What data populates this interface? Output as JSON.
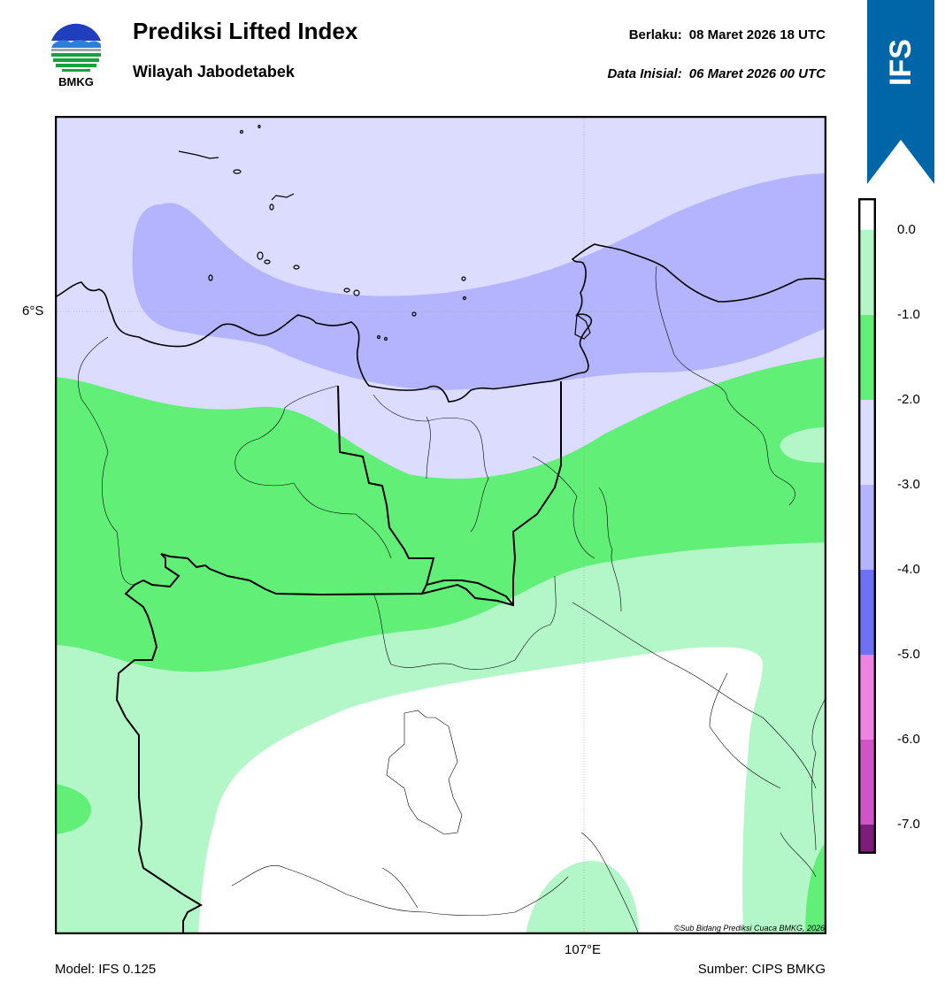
{
  "header": {
    "title": "Prediksi Lifted Index",
    "subtitle": "Wilayah Jabodetabek",
    "valid_label": "Berlaku:",
    "valid_value": "08 Maret 2026 18 UTC",
    "init_label": "Data Inisial:",
    "init_value": "06 Maret 2026 00 UTC"
  },
  "logo": {
    "text": "BMKG",
    "icon": "bmkg-logo"
  },
  "banner": {
    "text": "IFS",
    "color": "#0066a8"
  },
  "map": {
    "lat_label": "6°S",
    "lon_label": "107°E",
    "copyright": "©Sub Bidang Prediksi Cuaca BMKG, 2026"
  },
  "colorbar": {
    "ticks": [
      "0.0",
      "-1.0",
      "-2.0",
      "-3.0",
      "-4.0",
      "-5.0",
      "-6.0",
      "-7.0"
    ],
    "colors": [
      "#ffffff",
      "#b3f7c8",
      "#62ef78",
      "#dbdcff",
      "#b3b4fd",
      "#6f71f4",
      "#ee83e3",
      "#cf55c7",
      "#a63aa2",
      "#7d1d7b"
    ]
  },
  "footer": {
    "model": "Model: IFS 0.125",
    "source": "Sumber: CIPS BMKG"
  }
}
